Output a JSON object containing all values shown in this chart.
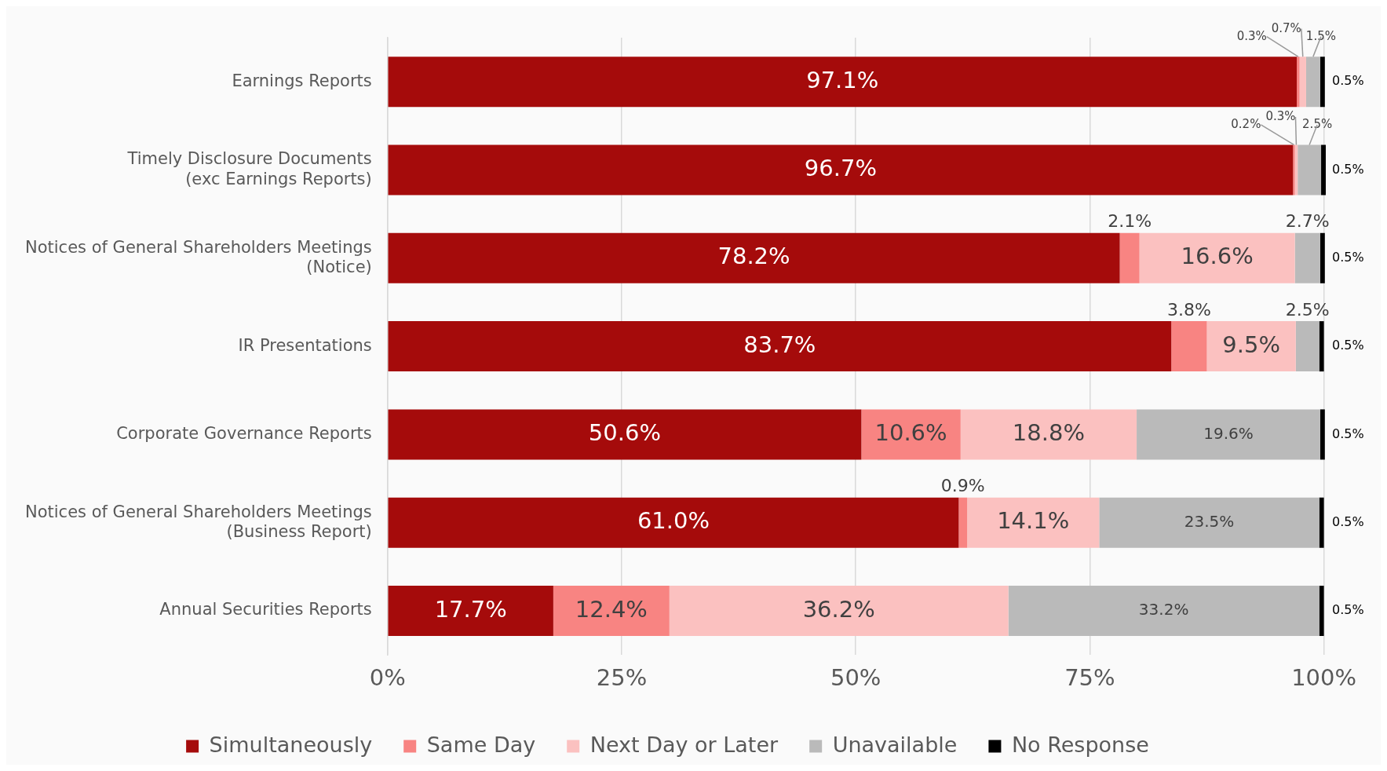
{
  "chart_data": {
    "type": "bar",
    "orientation": "horizontal",
    "stacked": true,
    "categories": [
      "Earnings Reports",
      "Timely Disclosure Documents (exc Earnings Reports)",
      "Notices of General Shareholders Meetings (Notice)",
      "IR Presentations",
      "Corporate Governance Reports",
      "Notices of General Shareholders Meetings (Business Report)",
      "Annual Securities Reports"
    ],
    "series": [
      {
        "name": "Simultaneously",
        "color": "#a50b0b",
        "values": [
          97.1,
          96.7,
          78.2,
          83.7,
          50.6,
          61.0,
          17.7
        ],
        "value_labels": [
          "97.1%",
          "96.7%",
          "78.2%",
          "83.7%",
          "50.6%",
          "61.0%",
          "17.7%"
        ]
      },
      {
        "name": "Same Day",
        "color": "#f88482",
        "values": [
          0.3,
          0.2,
          2.1,
          3.8,
          10.6,
          0.9,
          12.4
        ],
        "value_labels": [
          "0.3%",
          "0.2%",
          "2.1%",
          "3.8%",
          "10.6%",
          "0.9%",
          "12.4%"
        ]
      },
      {
        "name": "Next Day or Later",
        "color": "#fbc1c0",
        "values": [
          0.7,
          0.3,
          16.6,
          9.5,
          18.8,
          14.1,
          36.2
        ],
        "value_labels": [
          "0.7%",
          "0.3%",
          "16.6%",
          "9.5%",
          "18.8%",
          "14.1%",
          "36.2%"
        ]
      },
      {
        "name": "Unavailable",
        "color": "#bababa",
        "values": [
          1.5,
          2.5,
          2.7,
          2.5,
          19.6,
          23.5,
          33.2
        ],
        "value_labels": [
          "1.5%",
          "2.5%",
          "2.7%",
          "2.5%",
          "19.6%",
          "23.5%",
          "33.2%"
        ]
      },
      {
        "name": "No Response",
        "color": "#000000",
        "values": [
          0.5,
          0.5,
          0.5,
          0.5,
          0.5,
          0.5,
          0.5
        ],
        "value_labels": [
          "0.5%",
          "0.5%",
          "0.5%",
          "0.5%",
          "0.5%",
          "0.5%",
          "0.5%"
        ]
      }
    ],
    "xlim": [
      0,
      100.2
    ],
    "xticks": [
      {
        "value": 0,
        "label": "0%"
      },
      {
        "value": 25,
        "label": "25%"
      },
      {
        "value": 50,
        "label": "50%"
      },
      {
        "value": 75,
        "label": "75%"
      },
      {
        "value": 100,
        "label": "100%"
      }
    ],
    "grid": "x",
    "legend": "bottom"
  }
}
